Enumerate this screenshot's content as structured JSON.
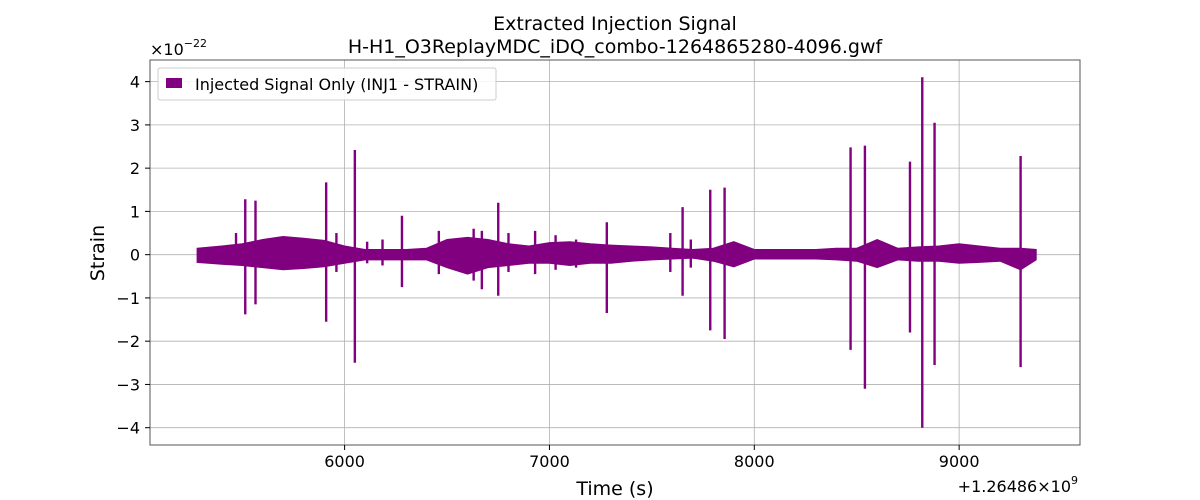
{
  "chart_data": {
    "type": "line",
    "title_lines": [
      "Extracted Injection Signal",
      "H-H1_O3ReplayMDC_iDQ_combo-1264865280-4096.gwf"
    ],
    "xlabel": "Time (s)",
    "ylabel": "Strain",
    "x_offset_label": "+1.26486×10",
    "x_offset_exp": "9",
    "y_scale_label": "×10",
    "y_scale_exp": "−22",
    "x_ticks": [
      6000,
      7000,
      8000,
      9000
    ],
    "x_tick_labels": [
      "6000",
      "7000",
      "8000",
      "9000"
    ],
    "y_ticks": [
      4,
      3,
      2,
      1,
      0,
      -1,
      -2,
      -3,
      -4
    ],
    "y_tick_labels": [
      "4",
      "3",
      "2",
      "1",
      "0",
      "−1",
      "−2",
      "−3",
      "−4"
    ],
    "xlim": [
      5050,
      9590
    ],
    "ylim": [
      -4.4,
      4.5
    ],
    "grid": true,
    "legend_position": "top-left",
    "series": [
      {
        "name": "Injected Signal Only (INJ1 - STRAIN)",
        "color": "#800080",
        "x_range": [
          5280,
          9376
        ],
        "noise_band": [
          [
            5280,
            0.15,
            -0.18
          ],
          [
            5400,
            0.2,
            -0.22
          ],
          [
            5500,
            0.25,
            -0.25
          ],
          [
            5600,
            0.35,
            -0.3
          ],
          [
            5700,
            0.42,
            -0.35
          ],
          [
            5800,
            0.38,
            -0.32
          ],
          [
            5900,
            0.33,
            -0.28
          ],
          [
            6000,
            0.2,
            -0.2
          ],
          [
            6100,
            0.12,
            -0.12
          ],
          [
            6200,
            0.12,
            -0.12
          ],
          [
            6300,
            0.12,
            -0.12
          ],
          [
            6400,
            0.15,
            -0.12
          ],
          [
            6500,
            0.35,
            -0.3
          ],
          [
            6600,
            0.4,
            -0.45
          ],
          [
            6700,
            0.35,
            -0.3
          ],
          [
            6800,
            0.25,
            -0.25
          ],
          [
            6900,
            0.2,
            -0.2
          ],
          [
            7000,
            0.28,
            -0.2
          ],
          [
            7100,
            0.3,
            -0.25
          ],
          [
            7200,
            0.25,
            -0.2
          ],
          [
            7300,
            0.22,
            -0.2
          ],
          [
            7400,
            0.2,
            -0.15
          ],
          [
            7500,
            0.18,
            -0.12
          ],
          [
            7600,
            0.15,
            -0.1
          ],
          [
            7700,
            0.12,
            -0.08
          ],
          [
            7800,
            0.15,
            -0.15
          ],
          [
            7900,
            0.3,
            -0.28
          ],
          [
            8000,
            0.12,
            -0.1
          ],
          [
            8100,
            0.12,
            -0.1
          ],
          [
            8200,
            0.12,
            -0.1
          ],
          [
            8300,
            0.12,
            -0.1
          ],
          [
            8400,
            0.15,
            -0.12
          ],
          [
            8500,
            0.15,
            -0.15
          ],
          [
            8600,
            0.35,
            -0.3
          ],
          [
            8700,
            0.15,
            -0.12
          ],
          [
            8800,
            0.18,
            -0.15
          ],
          [
            8900,
            0.2,
            -0.15
          ],
          [
            9000,
            0.25,
            -0.2
          ],
          [
            9100,
            0.2,
            -0.18
          ],
          [
            9200,
            0.15,
            -0.15
          ],
          [
            9300,
            0.15,
            -0.35
          ],
          [
            9376,
            0.12,
            -0.12
          ]
        ],
        "spikes": [
          [
            5470,
            0.5,
            -0.25
          ],
          [
            5515,
            1.28,
            -1.38
          ],
          [
            5565,
            1.25,
            -1.15
          ],
          [
            5650,
            0.35,
            -0.3
          ],
          [
            5910,
            1.67,
            -1.55
          ],
          [
            5960,
            0.5,
            -0.4
          ],
          [
            6050,
            2.42,
            -2.5
          ],
          [
            6110,
            0.3,
            -0.2
          ],
          [
            6185,
            0.35,
            -0.25
          ],
          [
            6280,
            0.9,
            -0.75
          ],
          [
            6460,
            0.55,
            -0.45
          ],
          [
            6630,
            0.6,
            -0.6
          ],
          [
            6670,
            0.55,
            -0.8
          ],
          [
            6750,
            1.2,
            -0.95
          ],
          [
            6800,
            0.5,
            -0.4
          ],
          [
            6930,
            0.55,
            -0.45
          ],
          [
            7030,
            0.45,
            -0.35
          ],
          [
            7130,
            0.35,
            -0.3
          ],
          [
            7280,
            0.75,
            -1.35
          ],
          [
            7590,
            0.5,
            -0.4
          ],
          [
            7650,
            1.1,
            -0.95
          ],
          [
            7690,
            0.35,
            -0.3
          ],
          [
            7785,
            1.5,
            -1.75
          ],
          [
            7855,
            1.55,
            -1.95
          ],
          [
            8470,
            2.48,
            -2.2
          ],
          [
            8540,
            2.52,
            -3.1
          ],
          [
            8760,
            2.15,
            -1.8
          ],
          [
            8820,
            4.1,
            -4.0
          ],
          [
            8880,
            3.05,
            -2.55
          ],
          [
            9300,
            2.28,
            -2.6
          ]
        ]
      }
    ]
  }
}
